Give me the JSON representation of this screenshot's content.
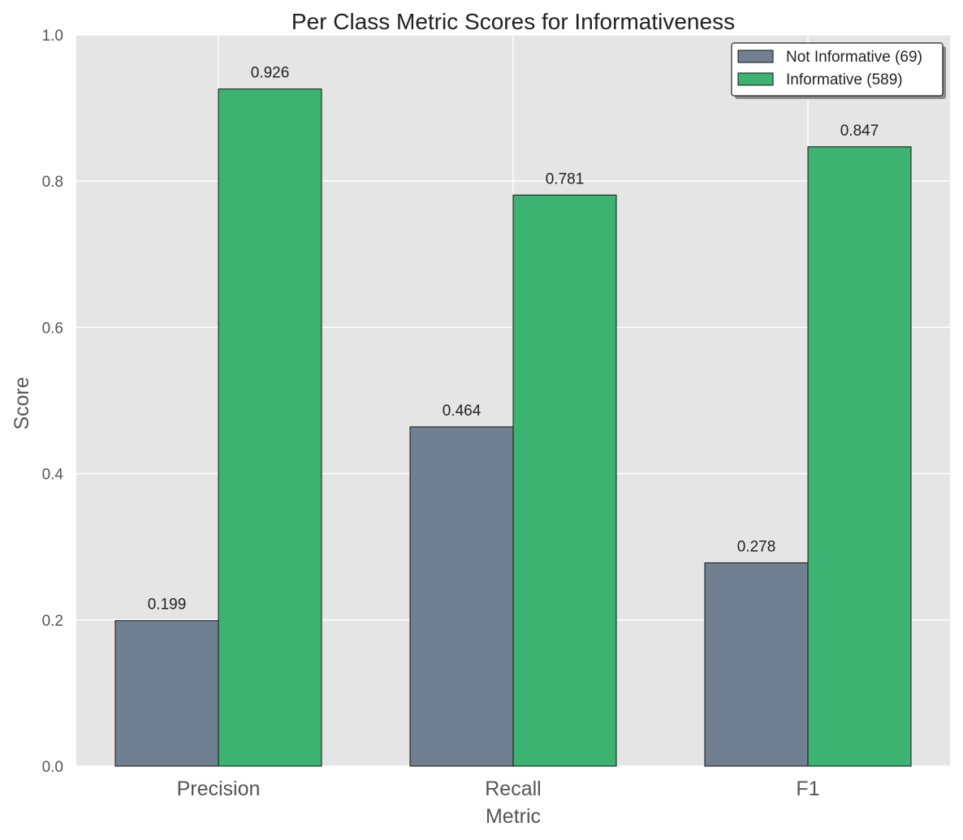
{
  "chart_data": {
    "type": "bar",
    "title": "Per Class Metric Scores for Informativeness",
    "xlabel": "Metric",
    "ylabel": "Score",
    "categories": [
      "Precision",
      "Recall",
      "F1"
    ],
    "series": [
      {
        "name": "Not Informative (69)",
        "color": "#708090",
        "values": [
          0.199,
          0.464,
          0.278
        ],
        "labels": [
          "0.199",
          "0.464",
          "0.278"
        ]
      },
      {
        "name": "Informative (589)",
        "color": "#3cb371",
        "values": [
          0.926,
          0.781,
          0.847
        ],
        "labels": [
          "0.926",
          "0.781",
          "0.847"
        ]
      }
    ],
    "ylim": [
      0,
      1.0
    ],
    "yticks": [
      "0.0",
      "0.2",
      "0.4",
      "0.6",
      "0.8",
      "1.0"
    ],
    "grid": true,
    "legend_position": "top-right",
    "background_color": "#e5e5e5",
    "grid_color": "#ffffff"
  }
}
